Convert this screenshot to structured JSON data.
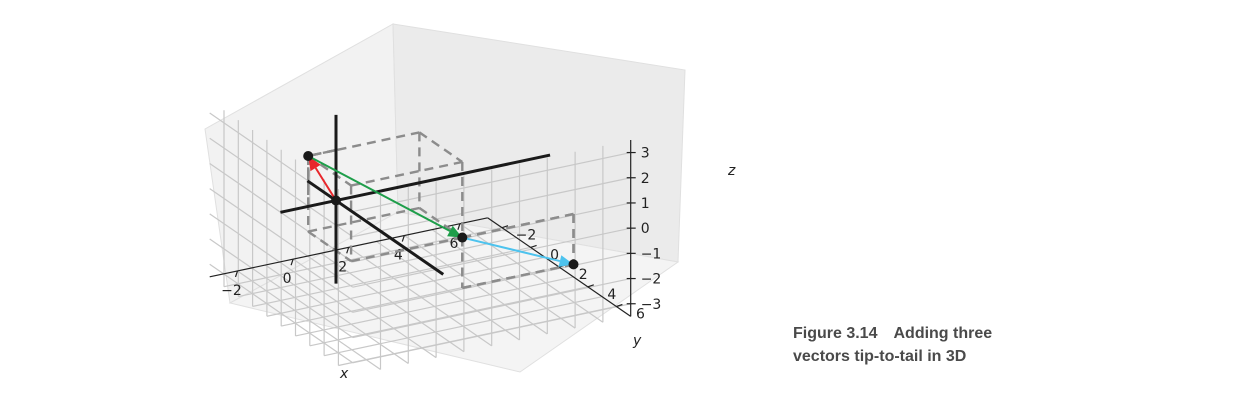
{
  "caption": {
    "figure_number": "Figure 3.14",
    "text": "Adding three",
    "text_line2": "vectors tip-to-tail in 3D"
  },
  "chart_data": {
    "type": "3d-vectors",
    "title": "",
    "xlabel": "x",
    "ylabel": "y",
    "zlabel": "z",
    "xlim": [
      -3,
      7
    ],
    "ylim": [
      -3,
      7
    ],
    "zlim": [
      -3.5,
      3.5
    ],
    "xticks": [
      "−2",
      "0",
      "2",
      "4",
      "6"
    ],
    "yticks": [
      "−2",
      "0",
      "2",
      "4",
      "6"
    ],
    "zticks": [
      "3",
      "2",
      "1",
      "0",
      "−1",
      "−2",
      "−3"
    ],
    "grid": true,
    "origin_axes_color": "#1a1a1a",
    "box_color": "#8c8c8c",
    "points": [
      {
        "x": 0,
        "y": 0,
        "z": 0
      },
      {
        "x": -1,
        "y": 0,
        "z": 2
      },
      {
        "x": 3,
        "y": 3,
        "z": -1
      },
      {
        "x": 7,
        "y": 3,
        "z": -3
      }
    ],
    "vectors": [
      {
        "from": [
          0,
          0,
          0
        ],
        "to": [
          -1,
          0,
          2
        ],
        "color": "#e8262b"
      },
      {
        "from": [
          -1,
          0,
          2
        ],
        "to": [
          3,
          3,
          -1
        ],
        "color": "#1e9e4a"
      },
      {
        "from": [
          3,
          3,
          -1
        ],
        "to": [
          7,
          3,
          -3
        ],
        "color": "#4dc3ee"
      }
    ]
  }
}
